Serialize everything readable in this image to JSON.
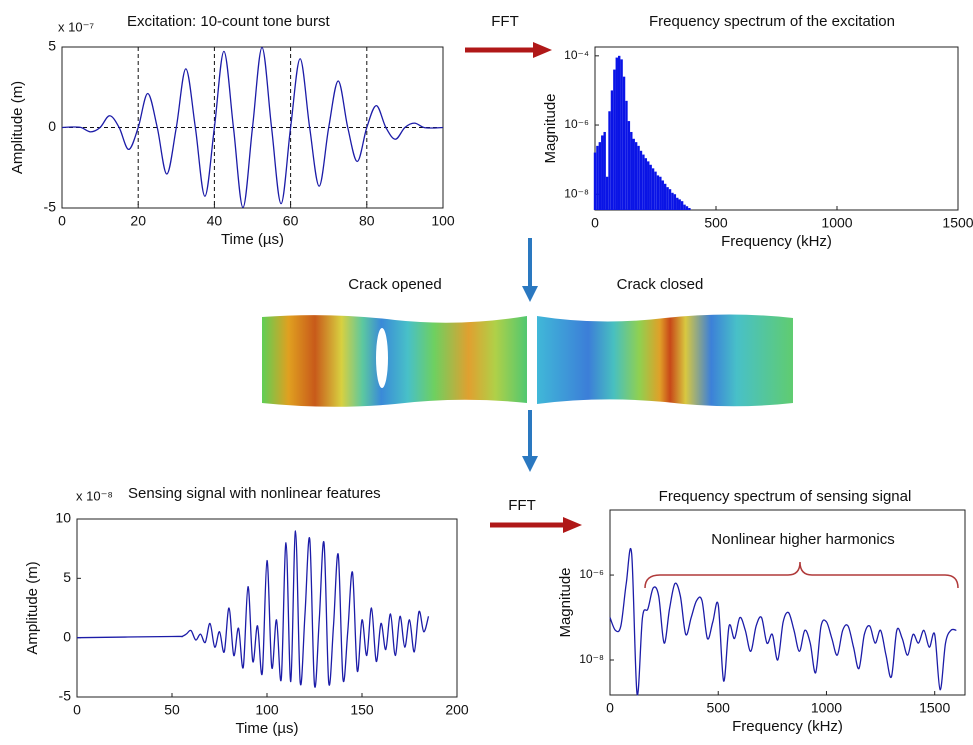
{
  "chart_data": [
    {
      "type": "line",
      "title": "Excitation: 10-count tone burst",
      "y_multiplier": "x 10⁻⁷",
      "xlabel": "Time (µs)",
      "ylabel": "Amplitude (m)",
      "color": "#1c1ca8",
      "xlim": [
        0,
        100
      ],
      "xticks": [
        0,
        20,
        40,
        60,
        80,
        100
      ],
      "ylim": [
        -5,
        5
      ],
      "yticks": [
        -5,
        0,
        5
      ],
      "vlines": [
        20,
        40,
        60,
        80
      ],
      "hlines": [
        0
      ],
      "x": [
        0,
        2.5,
        5,
        7.5,
        10,
        12.5,
        15,
        17.5,
        20,
        22.5,
        25,
        27.5,
        30,
        32.5,
        35,
        37.5,
        40,
        42.5,
        45,
        47.5,
        50,
        52.5,
        55,
        57.5,
        60,
        62.5,
        65,
        67.5,
        70,
        72.5,
        75,
        77.5,
        80,
        82.5,
        85,
        87.5,
        90,
        92.5,
        95,
        97.5,
        100
      ],
      "values": [
        0,
        0.03,
        0,
        -0.27,
        0,
        0.73,
        0,
        -1.36,
        0,
        2.11,
        0,
        -2.89,
        0,
        3.64,
        0,
        -4.27,
        0,
        4.73,
        0,
        -4.97,
        0,
        4.97,
        0,
        -4.73,
        0,
        4.27,
        0,
        -3.64,
        0,
        2.89,
        0,
        -2.11,
        0,
        1.36,
        0,
        -0.73,
        0,
        0.27,
        0,
        -0.03,
        0
      ]
    },
    {
      "type": "stem",
      "title": "Frequency spectrum of the excitation",
      "xlabel": "Frequency (kHz)",
      "ylabel": "Magnitude",
      "color": "#0a14e6",
      "log_y": true,
      "xlim": [
        0,
        1500
      ],
      "xticks": [
        0,
        500,
        1000,
        1500
      ],
      "ylim": [
        3.5e-09,
        0.00018
      ],
      "yticks": [
        {
          "value": 0.0001,
          "label": "10⁻⁴"
        },
        {
          "value": 1e-06,
          "label": "10⁻⁶"
        },
        {
          "value": 1e-08,
          "label": "10⁻⁸"
        }
      ],
      "x": [
        0,
        10,
        20,
        30,
        40,
        50,
        60,
        70,
        80,
        90,
        100,
        110,
        120,
        130,
        140,
        150,
        160,
        170,
        180,
        190,
        200,
        210,
        220,
        230,
        240,
        250,
        260,
        270,
        280,
        290,
        300,
        310,
        320,
        330,
        340,
        350,
        360,
        370,
        380,
        390
      ],
      "values": [
        1.6e-07,
        2.5e-07,
        3.2e-07,
        5e-07,
        6.3e-07,
        3.2e-08,
        2.5e-06,
        1e-05,
        4e-05,
        8.9e-05,
        0.0001,
        7.9e-05,
        2.5e-05,
        5e-06,
        1.3e-06,
        6.3e-07,
        4e-07,
        3.2e-07,
        2.5e-07,
        1.8e-07,
        1.4e-07,
        1.1e-07,
        8.9e-08,
        7.1e-08,
        5.6e-08,
        4.5e-08,
        3.5e-08,
        3.2e-08,
        2.5e-08,
        2e-08,
        1.6e-08,
        1.4e-08,
        1.1e-08,
        1e-08,
        7.9e-09,
        7.1e-09,
        6.3e-09,
        5e-09,
        4.5e-09,
        4e-09
      ]
    },
    {
      "type": "line",
      "title": "Sensing signal with nonlinear features",
      "y_multiplier": "x 10⁻⁸",
      "xlabel": "Time (µs)",
      "ylabel": "Amplitude (m)",
      "color": "#1c1ca8",
      "xlim": [
        0,
        200
      ],
      "xticks": [
        0,
        50,
        100,
        150,
        200
      ],
      "ylim": [
        -5,
        10
      ],
      "yticks": [
        -5,
        0,
        5,
        10
      ],
      "x": [
        0,
        50,
        55,
        57.5,
        60,
        62.5,
        65,
        67.5,
        70,
        72.5,
        75,
        77.5,
        80,
        82.5,
        85,
        87.5,
        90,
        92.5,
        95,
        97.5,
        100,
        102.5,
        105,
        107.5,
        110,
        112.5,
        115,
        117.5,
        120,
        122.5,
        125,
        127.5,
        130,
        132.5,
        135,
        137.5,
        140,
        142.5,
        145,
        147.5,
        150,
        152.5,
        155,
        157.5,
        160,
        162.5,
        165,
        167.5,
        170,
        172.5,
        175,
        177.5,
        180,
        182.5,
        185
      ],
      "values": [
        0,
        0.1,
        0.1,
        0.3,
        0.6,
        -0.2,
        0.3,
        -0.4,
        1.2,
        -0.8,
        0.5,
        -1.2,
        2.5,
        -1.5,
        0.8,
        -2.5,
        4.3,
        -2.0,
        1.0,
        -3.0,
        6.5,
        -2.5,
        1.5,
        -3.5,
        8.0,
        -3.7,
        9.0,
        -3.8,
        2.0,
        8.3,
        -4.0,
        1.5,
        8.0,
        -3.8,
        1.0,
        7.0,
        -3.5,
        0.5,
        5.5,
        -2.8,
        1.5,
        -1.5,
        2.5,
        -2.0,
        1.2,
        -1.0,
        2.0,
        -1.5,
        1.8,
        -0.8,
        1.5,
        -1.2,
        2.2,
        0.5,
        1.8
      ]
    },
    {
      "type": "line",
      "title": "Frequency spectrum of sensing signal",
      "annotation": "Nonlinear higher harmonics",
      "xlabel": "Frequency (kHz)",
      "ylabel": "Magnitude",
      "color": "#1c1ca8",
      "log_y": true,
      "xlim": [
        0,
        1640
      ],
      "xticks": [
        0,
        500,
        1000,
        1500
      ],
      "ylim": [
        1.5e-09,
        3.4e-05
      ],
      "yticks": [
        {
          "value": 1e-06,
          "label": "10⁻⁶"
        },
        {
          "value": 1e-08,
          "label": "10⁻⁸"
        }
      ],
      "x": [
        0,
        25,
        50,
        75,
        100,
        125,
        150,
        175,
        200,
        225,
        250,
        275,
        300,
        325,
        350,
        375,
        400,
        425,
        450,
        475,
        500,
        525,
        550,
        575,
        600,
        625,
        650,
        675,
        700,
        725,
        750,
        775,
        800,
        825,
        850,
        875,
        900,
        925,
        950,
        975,
        1000,
        1025,
        1050,
        1075,
        1100,
        1125,
        1150,
        1175,
        1200,
        1225,
        1250,
        1275,
        1300,
        1325,
        1350,
        1375,
        1400,
        1425,
        1450,
        1475,
        1500,
        1525,
        1550,
        1575,
        1600
      ],
      "values": [
        1e-07,
        5e-08,
        6.3e-08,
        6.3e-07,
        3.2e-06,
        1.6e-09,
        1e-07,
        1.6e-07,
        5e-07,
        3.2e-07,
        2.5e-08,
        1.6e-07,
        6.3e-07,
        3.2e-07,
        4e-08,
        1e-07,
        2.5e-07,
        2.5e-07,
        3.2e-08,
        7.9e-08,
        2e-07,
        3.2e-09,
        6.3e-08,
        3.2e-08,
        1e-07,
        5e-08,
        1.6e-08,
        6.3e-08,
        1e-07,
        2.5e-08,
        4e-08,
        1e-08,
        7.9e-08,
        1.3e-07,
        5e-08,
        1.6e-08,
        5e-08,
        2.5e-08,
        5e-09,
        6.3e-08,
        7.9e-08,
        3.2e-08,
        1.3e-08,
        5e-08,
        6.3e-08,
        2e-08,
        6.3e-09,
        4e-08,
        6.3e-08,
        2.5e-08,
        5e-08,
        1.3e-08,
        4e-09,
        5e-08,
        3.2e-08,
        1.3e-08,
        4e-08,
        2.5e-08,
        5e-08,
        2e-08,
        4e-08,
        2e-09,
        2.5e-08,
        5e-08,
        5e-08
      ]
    }
  ],
  "diagram": {
    "fft_labels": [
      "FFT",
      "FFT"
    ],
    "crack_labels": [
      "Crack opened",
      "Crack closed"
    ]
  }
}
